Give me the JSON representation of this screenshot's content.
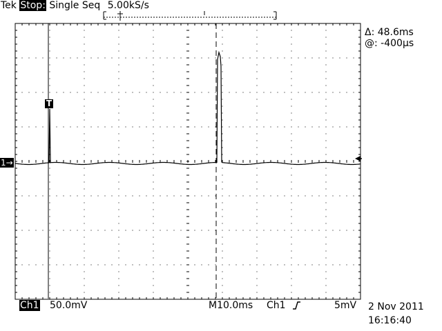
{
  "header": {
    "brand": "Tek",
    "state": "Stop:",
    "mode": "Single Seq",
    "sample_rate": "5.00kS/s"
  },
  "cursor_readout": {
    "delta": "Δ: 48.6ms",
    "at": "@: -400µs"
  },
  "markers": {
    "trigger_label": "T",
    "channel_marker": "1→"
  },
  "footer": {
    "channel": "Ch1",
    "volts_div": "50.0mV",
    "timebase": "M10.0ms",
    "trigger_source": "Ch1",
    "trigger_slope_icon": "rising-edge-icon",
    "trigger_level": "5mV",
    "date": "2 Nov 2011",
    "time": "16:16:40"
  },
  "colors": {
    "trace": "#000000",
    "background": "#ffffff",
    "grid": "#000000"
  },
  "grid": {
    "divisions_x": 10,
    "divisions_y": 8,
    "minor_per_division": 5
  }
}
